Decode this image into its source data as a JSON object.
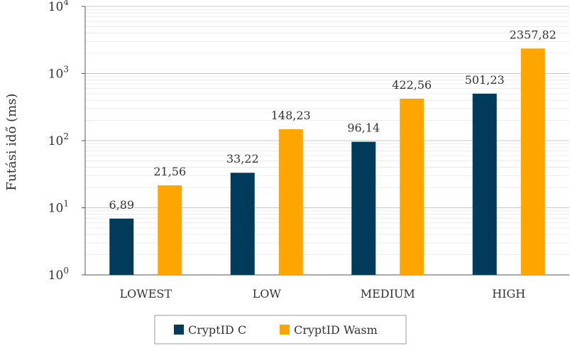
{
  "chart_data": {
    "type": "bar",
    "scale": "log10",
    "ylabel": "Futási idő (ms)",
    "xlabel": "",
    "ylim": [
      1,
      10000
    ],
    "yticks": [
      {
        "base": "10",
        "exp": "0",
        "value": 1
      },
      {
        "base": "10",
        "exp": "1",
        "value": 10
      },
      {
        "base": "10",
        "exp": "2",
        "value": 100
      },
      {
        "base": "10",
        "exp": "3",
        "value": 1000
      },
      {
        "base": "10",
        "exp": "4",
        "value": 10000
      }
    ],
    "grid": true,
    "legend": "bottom",
    "categories": [
      "LOWEST",
      "LOW",
      "MEDIUM",
      "HIGH"
    ],
    "series": [
      {
        "name": "CryptID C",
        "color": "#003b5c",
        "values": [
          6.89,
          33.22,
          96.14,
          501.23
        ],
        "labels": [
          "6,89",
          "33,22",
          "96,14",
          "501,23"
        ]
      },
      {
        "name": "CryptID Wasm",
        "color": "#ffa500",
        "values": [
          21.56,
          148.23,
          422.56,
          2357.82
        ],
        "labels": [
          "21,56",
          "148,23",
          "422,56",
          "2357,82"
        ]
      }
    ]
  }
}
